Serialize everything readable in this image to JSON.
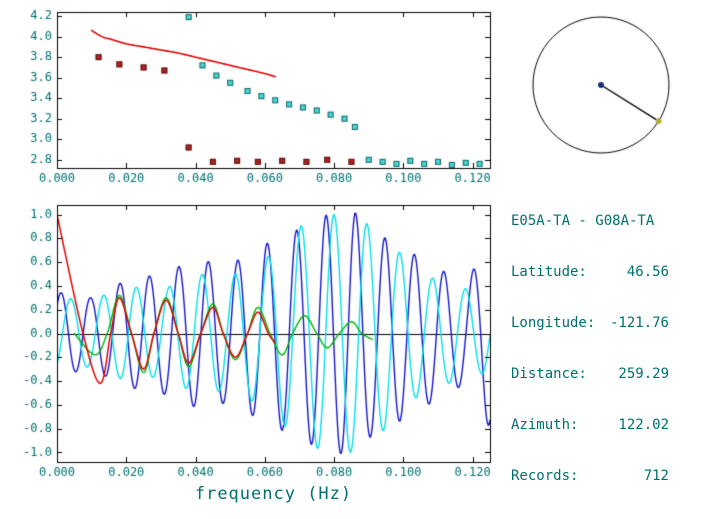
{
  "colors": {
    "text": "#007070",
    "axis": "#000000",
    "background": "#ffffff"
  },
  "info_panel": {
    "title": "E05A-TA - G08A-TA",
    "rows": [
      {
        "label": "Latitude:",
        "value": "46.56"
      },
      {
        "label": "Longitude:",
        "value": "-121.76"
      },
      {
        "label": "Distance:",
        "value": "259.29"
      },
      {
        "label": "Azimuth:",
        "value": "122.02"
      },
      {
        "label": "Records:",
        "value": "712"
      }
    ]
  },
  "chart_data": {
    "dispersion_plot": {
      "type": "scatter",
      "title": "",
      "xlabel": "",
      "ylabel": "",
      "xlim": [
        0,
        0.125
      ],
      "ylim": [
        2.72,
        4.24
      ],
      "xticks": [
        0.0,
        0.02,
        0.04,
        0.06,
        0.08,
        0.1,
        0.12
      ],
      "xtick_labels": [
        "0.000",
        "0.020",
        "0.040",
        "0.060",
        "0.080",
        "0.100",
        "0.120"
      ],
      "yticks": [
        2.8,
        3.0,
        3.2,
        3.4,
        3.6,
        3.8,
        4.0,
        4.2
      ],
      "ytick_labels": [
        "2.8",
        "3.0",
        "3.2",
        "3.4",
        "3.6",
        "3.8",
        "4.0",
        "4.2"
      ],
      "grid": false,
      "series": [
        {
          "name": "dark-red-squares",
          "marker": "square",
          "color": "#b22222",
          "points": [
            [
              0.012,
              3.8
            ],
            [
              0.018,
              3.73
            ],
            [
              0.025,
              3.7
            ],
            [
              0.031,
              3.67
            ],
            [
              0.038,
              2.92
            ],
            [
              0.045,
              2.78
            ],
            [
              0.052,
              2.79
            ],
            [
              0.058,
              2.78
            ],
            [
              0.065,
              2.79
            ],
            [
              0.072,
              2.78
            ],
            [
              0.078,
              2.8
            ],
            [
              0.085,
              2.78
            ]
          ]
        },
        {
          "name": "cyan-squares",
          "marker": "square",
          "color": "#45d8d8",
          "points": [
            [
              0.038,
              4.19
            ],
            [
              0.042,
              3.72
            ],
            [
              0.046,
              3.62
            ],
            [
              0.05,
              3.55
            ],
            [
              0.055,
              3.47
            ],
            [
              0.059,
              3.42
            ],
            [
              0.063,
              3.38
            ],
            [
              0.067,
              3.34
            ],
            [
              0.071,
              3.31
            ],
            [
              0.075,
              3.28
            ],
            [
              0.079,
              3.24
            ],
            [
              0.083,
              3.2
            ],
            [
              0.086,
              3.12
            ],
            [
              0.09,
              2.8
            ],
            [
              0.094,
              2.78
            ],
            [
              0.098,
              2.76
            ],
            [
              0.102,
              2.79
            ],
            [
              0.106,
              2.76
            ],
            [
              0.11,
              2.78
            ],
            [
              0.114,
              2.75
            ],
            [
              0.118,
              2.77
            ],
            [
              0.122,
              2.76
            ]
          ]
        },
        {
          "name": "reference-curve-red",
          "style": "line",
          "color": "#e00000",
          "width": 1.6,
          "points": [
            [
              0.01,
              4.06
            ],
            [
              0.013,
              4.0
            ],
            [
              0.016,
              3.97
            ],
            [
              0.02,
              3.93
            ],
            [
              0.025,
              3.9
            ],
            [
              0.03,
              3.87
            ],
            [
              0.035,
              3.84
            ],
            [
              0.04,
              3.8
            ],
            [
              0.045,
              3.76
            ],
            [
              0.05,
              3.72
            ],
            [
              0.055,
              3.68
            ],
            [
              0.06,
              3.64
            ],
            [
              0.063,
              3.61
            ]
          ]
        }
      ]
    },
    "waveform_plot": {
      "type": "line",
      "title": "",
      "xlabel": "frequency (Hz)",
      "ylabel": "",
      "xlim": [
        0,
        0.125
      ],
      "ylim": [
        -1.08,
        1.08
      ],
      "xticks": [
        0.0,
        0.02,
        0.04,
        0.06,
        0.08,
        0.1,
        0.12
      ],
      "xtick_labels": [
        "0.000",
        "0.020",
        "0.040",
        "0.060",
        "0.080",
        "0.100",
        "0.120"
      ],
      "yticks": [
        -1.0,
        -0.8,
        -0.6,
        -0.4,
        -0.2,
        0.0,
        0.2,
        0.4,
        0.6,
        0.8,
        1.0
      ],
      "ytick_labels": [
        "-1.0",
        "-0.8",
        "-0.6",
        "-0.4",
        "-0.2",
        "0.0",
        "0.2",
        "0.4",
        "0.6",
        "0.8",
        "1.0"
      ],
      "zero_line": true,
      "grid": false,
      "series": [
        {
          "name": "spectrum-blue",
          "color": "#1414cc",
          "width": 1.4,
          "model": "am_sine",
          "period": 0.0085,
          "phase_deg": 40,
          "range": [
            0,
            0.125
          ],
          "envelope": [
            [
              0,
              0.35
            ],
            [
              0.01,
              0.3
            ],
            [
              0.02,
              0.45
            ],
            [
              0.03,
              0.5
            ],
            [
              0.04,
              0.62
            ],
            [
              0.05,
              0.58
            ],
            [
              0.06,
              0.75
            ],
            [
              0.07,
              0.88
            ],
            [
              0.078,
              1.0
            ],
            [
              0.086,
              1.02
            ],
            [
              0.09,
              0.88
            ],
            [
              0.1,
              0.72
            ],
            [
              0.11,
              0.55
            ],
            [
              0.118,
              0.42
            ],
            [
              0.125,
              0.8
            ]
          ]
        },
        {
          "name": "spectrum-cyan",
          "color": "#00dfe8",
          "width": 1.4,
          "model": "am_sine",
          "period": 0.0095,
          "phase_deg": -60,
          "range": [
            0,
            0.125
          ],
          "envelope": [
            [
              0,
              0.3
            ],
            [
              0.01,
              0.28
            ],
            [
              0.02,
              0.4
            ],
            [
              0.03,
              0.36
            ],
            [
              0.04,
              0.5
            ],
            [
              0.05,
              0.48
            ],
            [
              0.06,
              0.62
            ],
            [
              0.07,
              0.9
            ],
            [
              0.078,
              1.0
            ],
            [
              0.086,
              1.0
            ],
            [
              0.095,
              0.8
            ],
            [
              0.105,
              0.5
            ],
            [
              0.115,
              0.4
            ],
            [
              0.125,
              0.32
            ]
          ]
        },
        {
          "name": "smoothed-green",
          "color": "#00b400",
          "width": 1.4,
          "style": "line",
          "points": [
            [
              0.005,
              0
            ],
            [
              0.011,
              -0.18
            ],
            [
              0.0145,
              0
            ],
            [
              0.018,
              0.32
            ],
            [
              0.0215,
              0
            ],
            [
              0.025,
              -0.33
            ],
            [
              0.028,
              0
            ],
            [
              0.0315,
              0.3
            ],
            [
              0.035,
              0
            ],
            [
              0.038,
              -0.28
            ],
            [
              0.0415,
              0
            ],
            [
              0.045,
              0.25
            ],
            [
              0.048,
              0
            ],
            [
              0.0515,
              -0.22
            ],
            [
              0.055,
              0
            ],
            [
              0.058,
              0.22
            ],
            [
              0.0615,
              0
            ],
            [
              0.065,
              -0.18
            ],
            [
              0.068,
              0
            ],
            [
              0.0715,
              0.15
            ],
            [
              0.075,
              0
            ],
            [
              0.078,
              -0.12
            ],
            [
              0.0815,
              0
            ],
            [
              0.085,
              0.1
            ],
            [
              0.088,
              0
            ],
            [
              0.091,
              -0.05
            ]
          ]
        },
        {
          "name": "smoothed-red",
          "color": "#e00000",
          "width": 1.5,
          "style": "line",
          "points": [
            [
              0,
              1.0
            ],
            [
              0.0075,
              0
            ],
            [
              0.0125,
              -0.42
            ],
            [
              0.0155,
              0
            ],
            [
              0.018,
              0.3
            ],
            [
              0.0215,
              0
            ],
            [
              0.025,
              -0.3
            ],
            [
              0.028,
              0
            ],
            [
              0.0315,
              0.28
            ],
            [
              0.035,
              0
            ],
            [
              0.038,
              -0.25
            ],
            [
              0.0415,
              0
            ],
            [
              0.045,
              0.22
            ],
            [
              0.048,
              0
            ],
            [
              0.0515,
              -0.2
            ],
            [
              0.055,
              0
            ],
            [
              0.058,
              0.18
            ],
            [
              0.061,
              0
            ],
            [
              0.063,
              -0.08
            ]
          ]
        }
      ]
    },
    "azimuth_plot": {
      "type": "polar",
      "azimuth_deg": 122.02,
      "circle_color": "#000000",
      "line_color": "#000000",
      "center_dot_color": "#1a2f7a",
      "edge_dot_color": "#b0b040"
    }
  }
}
